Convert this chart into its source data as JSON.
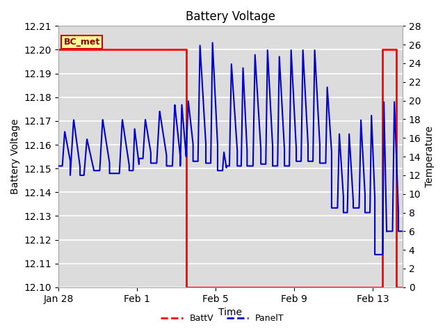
{
  "title": "Battery Voltage",
  "xlabel": "Time",
  "ylabel_left": "Battery Voltage",
  "ylabel_right": "Temperature",
  "ylim_left": [
    12.1,
    12.21
  ],
  "ylim_right": [
    0,
    28
  ],
  "yticks_left": [
    12.1,
    12.11,
    12.12,
    12.13,
    12.14,
    12.15,
    12.16,
    12.17,
    12.18,
    12.19,
    12.2,
    12.21
  ],
  "yticks_right": [
    0,
    2,
    4,
    6,
    8,
    10,
    12,
    14,
    16,
    18,
    20,
    22,
    24,
    26,
    28
  ],
  "background_color": "#ffffff",
  "plot_bg_color": "#dcdcdc",
  "grid_color": "#ffffff",
  "annotation_text": "BC_met",
  "annotation_bg": "#ffff99",
  "annotation_border": "#cc0000",
  "legend_entries": [
    "BattV",
    "PanelT"
  ],
  "batt_color": "#ff0000",
  "panel_color": "#0000cc",
  "batt_x": [
    0,
    6.5,
    6.5,
    16.5,
    16.5,
    17.2,
    17.2,
    17.5
  ],
  "batt_y": [
    12.2,
    12.2,
    12.1,
    12.1,
    12.2,
    12.2,
    12.1,
    12.1
  ],
  "xtick_positions": [
    0,
    4,
    8,
    12,
    16
  ],
  "xtick_labels": [
    "Jan 28",
    "Feb 1",
    "Feb 5",
    "Feb 9",
    "Feb 13"
  ],
  "xlim": [
    0,
    17.5
  ],
  "figsize": [
    6.4,
    4.8
  ],
  "dpi": 100,
  "title_fontsize": 12,
  "axis_fontsize": 10,
  "legend_fontsize": 9
}
